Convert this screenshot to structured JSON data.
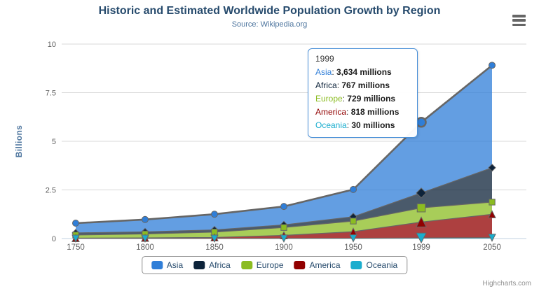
{
  "header": {
    "title": "Historic and Estimated Worldwide Population Growth by Region",
    "subtitle": "Source: Wikipedia.org"
  },
  "menu": {
    "icon": "hamburger-menu-icon"
  },
  "y_axis": {
    "title": "Billions"
  },
  "tooltip": {
    "header": "1999",
    "border_color": "#4a90d8",
    "rows": [
      {
        "label": "Asia",
        "color": "#2f7ed8",
        "value": "3,634 millions"
      },
      {
        "label": "Africa",
        "color": "#0d233a",
        "value": "767 millions"
      },
      {
        "label": "Europe",
        "color": "#8bbc21",
        "value": "729 millions"
      },
      {
        "label": "America",
        "color": "#910000",
        "value": "818 millions"
      },
      {
        "label": "Oceania",
        "color": "#1aadce",
        "value": "30 millions"
      }
    ]
  },
  "legend": {
    "items": [
      {
        "label": "Asia",
        "color": "#2f7ed8"
      },
      {
        "label": "Africa",
        "color": "#0d233a"
      },
      {
        "label": "Europe",
        "color": "#8bbc21"
      },
      {
        "label": "America",
        "color": "#910000"
      },
      {
        "label": "Oceania",
        "color": "#1aadce"
      }
    ]
  },
  "credits": {
    "label": "Highcharts.com"
  },
  "chart_data": {
    "type": "area",
    "stacking": "normal",
    "title": "Historic and Estimated Worldwide Population Growth by Region",
    "subtitle": "Source: Wikipedia.org",
    "xlabel": "",
    "ylabel": "Billions",
    "values_unit": "millions",
    "x": [
      1750,
      1800,
      1850,
      1900,
      1950,
      1999,
      2050
    ],
    "x_tick_labels": [
      "1750",
      "1800",
      "1850",
      "1900",
      "1950",
      "1999",
      "2050"
    ],
    "ylim": [
      0,
      10
    ],
    "y_ticks": [
      0,
      2.5,
      5,
      7.5,
      10
    ],
    "y_tick_labels": [
      "0",
      "2.5",
      "5",
      "7.5",
      "10"
    ],
    "grid": true,
    "legend_position": "bottom",
    "hover_x": 1999,
    "line_color": "#666666",
    "grid_color": "#d8d8d8",
    "axis_line_color": "#c0d0e0",
    "tick_label_color": "#606060",
    "fill_opacity": 0.75,
    "stack_order_bottom_to_top": [
      "Oceania",
      "America",
      "Europe",
      "Africa",
      "Asia"
    ],
    "series": [
      {
        "name": "Asia",
        "color": "#2f7ed8",
        "marker": "circle",
        "values": [
          502,
          635,
          809,
          947,
          1402,
          3634,
          5268
        ]
      },
      {
        "name": "Africa",
        "color": "#0d233a",
        "marker": "diamond",
        "values": [
          106,
          107,
          111,
          133,
          221,
          767,
          1766
        ]
      },
      {
        "name": "Europe",
        "color": "#8bbc21",
        "marker": "square",
        "values": [
          163,
          203,
          276,
          408,
          547,
          729,
          628
        ]
      },
      {
        "name": "America",
        "color": "#910000",
        "marker": "triangle",
        "values": [
          18,
          31,
          54,
          156,
          339,
          818,
          1201
        ]
      },
      {
        "name": "Oceania",
        "color": "#1aadce",
        "marker": "triangle-down",
        "values": [
          2,
          2,
          2,
          6,
          13,
          30,
          46
        ]
      }
    ]
  }
}
